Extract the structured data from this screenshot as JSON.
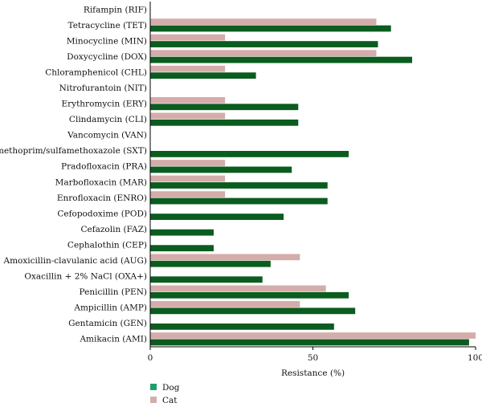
{
  "chart_data": {
    "type": "bar",
    "orientation": "horizontal",
    "xlabel": "Resistance (%)",
    "xlim": [
      0,
      100
    ],
    "xticks": [
      0,
      50,
      100
    ],
    "legend_position": "bottom-left",
    "categories": [
      "Rifampin (RIF)",
      "Tetracycline (TET)",
      "Minocycline (MIN)",
      "Doxycycline (DOX)",
      "Chloramphenicol (CHL)",
      "Nitrofurantoin (NIT)",
      "Erythromycin (ERY)",
      "Clindamycin (CLI)",
      "Vancomycin (VAN)",
      "Trimethoprim/sulfamethoxazole (SXT)",
      "Pradofloxacin (PRA)",
      "Marbofloxacin (MAR)",
      "Enrofloxacin (ENRO)",
      "Cefopodoxime (POD)",
      "Cefazolin (FAZ)",
      "Cephalothin (CEP)",
      "Amoxicillin-clavulanic acid (AUG)",
      "Oxacillin + 2% NaCl (OXA+)",
      "Penicillin (PEN)",
      "Ampicillin (AMP)",
      "Gentamicin (GEN)",
      "Amikacin (AMI)"
    ],
    "series": [
      {
        "name": "Dog",
        "color": "#0a5c1f",
        "values": [
          0,
          74,
          70,
          80.5,
          32.5,
          0,
          45.5,
          45.5,
          0,
          61,
          43.5,
          54.5,
          54.5,
          41,
          19.5,
          19.5,
          37,
          34.5,
          61,
          63,
          56.5,
          98
        ]
      },
      {
        "name": "Cat",
        "color": "#d4adaa",
        "values": [
          0,
          69.5,
          23,
          69.5,
          23,
          0,
          23,
          23,
          0,
          0,
          23,
          23,
          23,
          0,
          0,
          0,
          46,
          0,
          54,
          46,
          0,
          100
        ]
      }
    ]
  }
}
